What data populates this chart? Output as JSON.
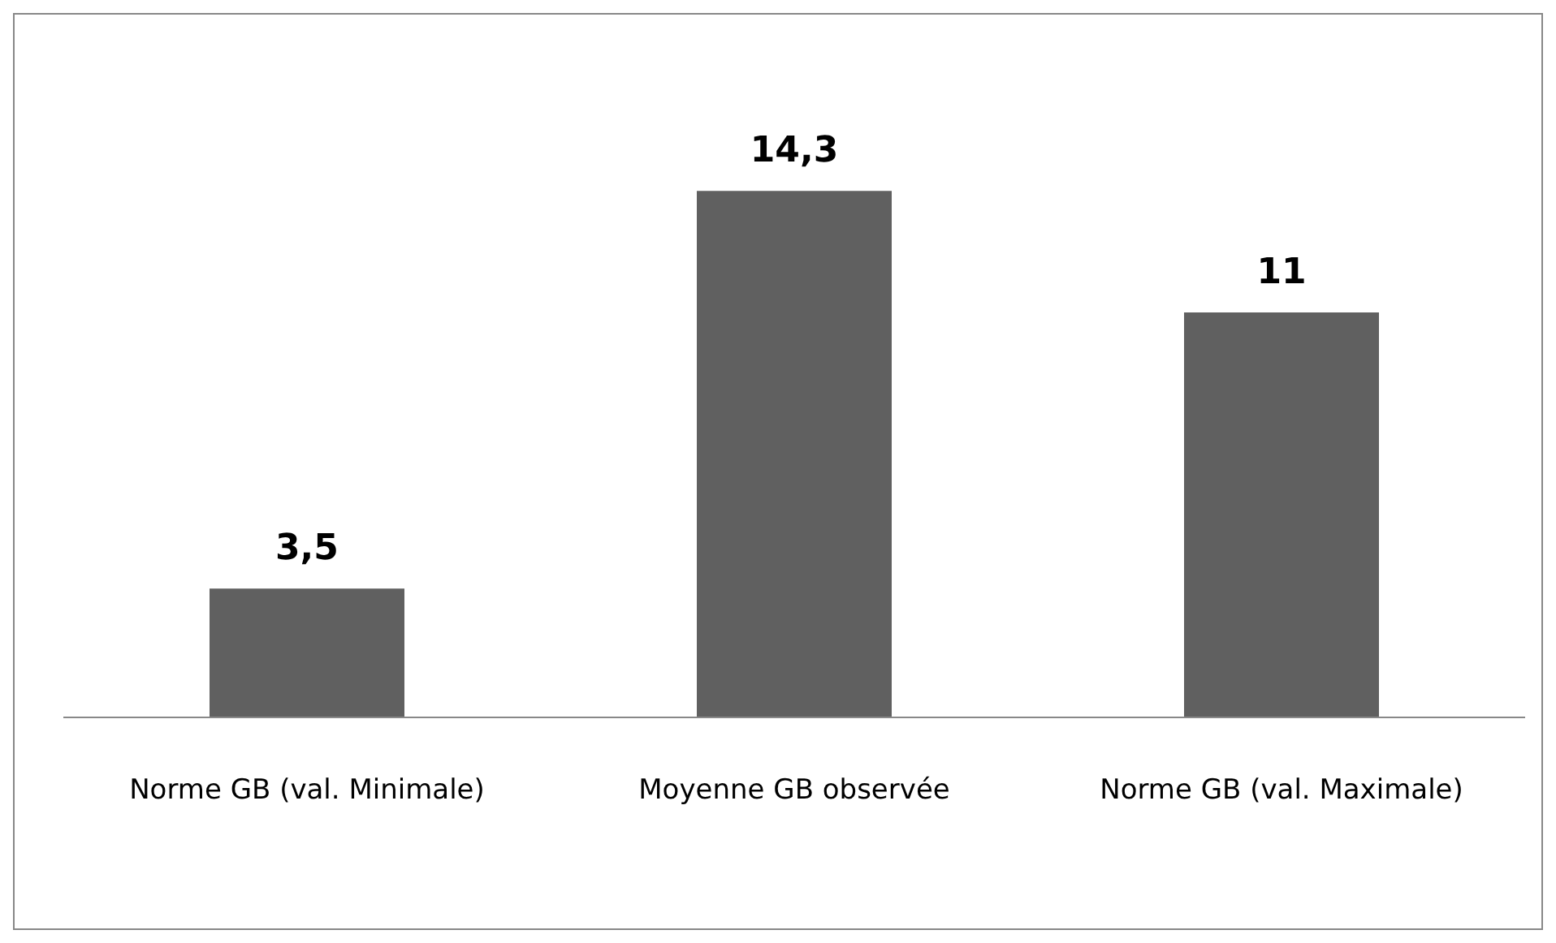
{
  "chart_data": {
    "type": "bar",
    "categories": [
      "Norme GB (val. Minimale)",
      "Moyenne GB observée",
      "Norme GB (val. Maximale)"
    ],
    "values": [
      3.5,
      14.3,
      11
    ],
    "value_labels": [
      "3,5",
      "14,3",
      "11"
    ],
    "color": "#606060"
  }
}
